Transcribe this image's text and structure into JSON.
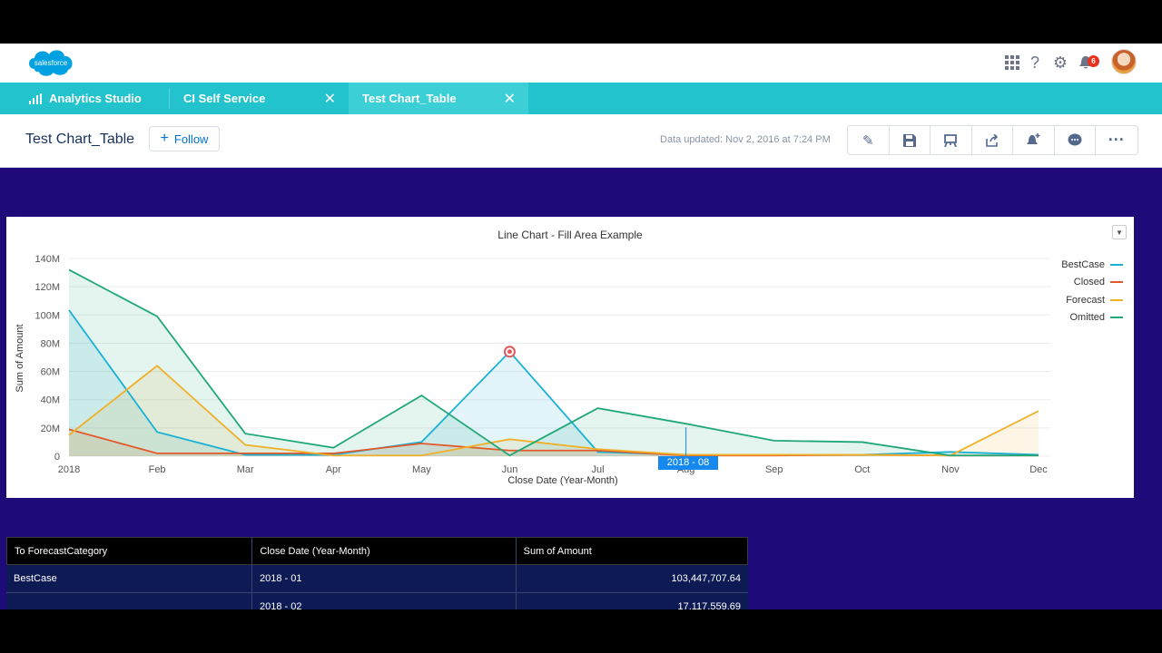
{
  "header": {
    "logo_text": "salesforce",
    "icons": [
      "grid-icon",
      "help-icon",
      "gear-icon",
      "bell-icon"
    ],
    "notification_count": "6"
  },
  "tabs": [
    {
      "label": "Analytics Studio",
      "closable": false,
      "active": false
    },
    {
      "label": "CI Self Service",
      "closable": true,
      "active": false
    },
    {
      "label": "Test Chart_Table",
      "closable": true,
      "active": true
    }
  ],
  "page": {
    "title": "Test Chart_Table",
    "follow_label": "Follow",
    "updated_text": "Data updated: Nov 2, 2016 at 7:24 PM",
    "actions": [
      "pencil-icon",
      "save-icon",
      "present-icon",
      "share-icon",
      "notify-icon",
      "comment-icon",
      "more-icon"
    ]
  },
  "chart_data": {
    "type": "area",
    "title": "Line Chart - Fill Area Example",
    "xlabel": "Close Date (Year-Month)",
    "ylabel": "Sum of Amount",
    "categories": [
      "2018",
      "Feb",
      "Mar",
      "Apr",
      "May",
      "Jun",
      "Jul",
      "Aug",
      "Sep",
      "Oct",
      "Nov",
      "Dec"
    ],
    "yticks": [
      "0",
      "20M",
      "40M",
      "60M",
      "80M",
      "100M",
      "120M",
      "140M"
    ],
    "ylim": [
      0,
      140
    ],
    "grid": true,
    "legend_position": "right",
    "tooltip": "2018 - 08",
    "series": [
      {
        "name": "BestCase",
        "color": "#1ab0d6",
        "values": [
          103.4,
          17.1,
          1,
          1,
          10,
          74,
          3,
          1,
          1,
          1,
          3,
          1
        ]
      },
      {
        "name": "Closed",
        "color": "#e25a2a",
        "values": [
          19,
          2,
          2,
          2,
          9,
          4,
          4,
          0.5,
          0.5,
          1,
          0.5,
          0.5
        ]
      },
      {
        "name": "Forecast",
        "color": "#f0b02a",
        "values": [
          15,
          64,
          8,
          0.5,
          0.5,
          12,
          5,
          1,
          1,
          1,
          0.5,
          32
        ]
      },
      {
        "name": "Omitted",
        "color": "#21a878",
        "values": [
          132,
          99,
          16,
          6,
          43,
          0.5,
          34,
          23,
          11,
          10,
          0.5,
          0.5
        ]
      }
    ]
  },
  "table": {
    "headers": [
      "To ForecastCategory",
      "Close Date (Year-Month)",
      "Sum of Amount"
    ],
    "rows": [
      {
        "category": "BestCase",
        "date": "2018 - 01",
        "amount": "103,447,707.64"
      },
      {
        "category": "",
        "date": "2018 - 02",
        "amount": "17,117,559.69"
      }
    ]
  }
}
